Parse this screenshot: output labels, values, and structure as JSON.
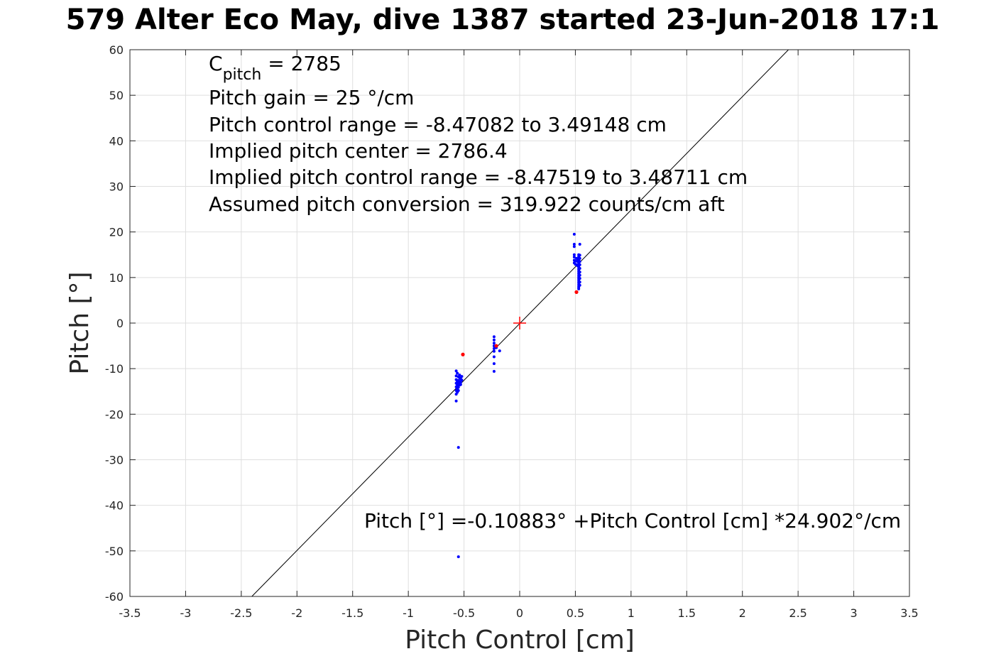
{
  "chart_data": {
    "type": "scatter",
    "title": "579 Alter Eco May, dive 1387 started 23-Jun-2018 17:1",
    "xlabel": "Pitch Control [cm]",
    "ylabel": "Pitch [°]",
    "xlim": [
      -3.5,
      3.5
    ],
    "ylim": [
      -60,
      60
    ],
    "xticks": [
      "-3.5",
      "-3",
      "-2.5",
      "-2",
      "-1.5",
      "-1",
      "-0.5",
      "0",
      "0.5",
      "1",
      "1.5",
      "2",
      "2.5",
      "3",
      "3.5"
    ],
    "yticks": [
      "60",
      "50",
      "40",
      "30",
      "20",
      "10",
      "0",
      "-10",
      "-20",
      "-30",
      "-40",
      "-50",
      "-60"
    ],
    "grid": true,
    "annotations": {
      "c_pitch_symbol": "C",
      "c_pitch_subscript": "pitch",
      "c_pitch_value": " = 2785",
      "lines": [
        "Pitch gain = 25 °/cm",
        "Pitch control range = -8.47082 to 3.49148 cm",
        "Implied pitch center = 2786.4",
        "Implied pitch control range = -8.47519 to 3.48711 cm",
        "Assumed pitch conversion = 319.922 counts/cm aft"
      ],
      "fit_equation": "Pitch [°] =-0.10883° +Pitch Control [cm] *24.902°/cm"
    },
    "fit_line": {
      "intercept": -0.10883,
      "slope": 24.902,
      "color": "#000000"
    },
    "center_marker": {
      "x": 0,
      "y": 0,
      "color": "#ff0000"
    },
    "series": [
      {
        "color": "#0000ff",
        "points": [
          [
            0.49,
            19.5
          ],
          [
            0.49,
            17.3
          ],
          [
            0.49,
            16.8
          ],
          [
            0.49,
            15.0
          ],
          [
            0.49,
            14.5
          ],
          [
            0.49,
            13.8
          ],
          [
            0.49,
            13.2
          ],
          [
            0.5,
            12.9
          ],
          [
            0.5,
            13.6
          ],
          [
            0.51,
            14.2
          ],
          [
            0.51,
            12.8
          ],
          [
            0.52,
            13.5
          ],
          [
            0.52,
            14.0
          ],
          [
            0.52,
            12.6
          ],
          [
            0.53,
            15.0
          ],
          [
            0.53,
            14.6
          ],
          [
            0.53,
            14.1
          ],
          [
            0.53,
            13.7
          ],
          [
            0.53,
            13.3
          ],
          [
            0.53,
            12.9
          ],
          [
            0.53,
            12.5
          ],
          [
            0.53,
            12.1
          ],
          [
            0.53,
            11.7
          ],
          [
            0.53,
            11.3
          ],
          [
            0.53,
            10.9
          ],
          [
            0.53,
            10.5
          ],
          [
            0.53,
            10.1
          ],
          [
            0.53,
            9.7
          ],
          [
            0.53,
            9.3
          ],
          [
            0.53,
            8.9
          ],
          [
            0.53,
            8.5
          ],
          [
            0.53,
            8.1
          ],
          [
            0.53,
            7.8
          ],
          [
            0.53,
            7.5
          ],
          [
            0.54,
            17.3
          ],
          [
            0.54,
            14.9
          ],
          [
            0.54,
            14.2
          ],
          [
            0.54,
            13.5
          ],
          [
            0.54,
            12.8
          ],
          [
            0.54,
            12.0
          ],
          [
            0.54,
            11.2
          ],
          [
            0.54,
            10.5
          ],
          [
            0.54,
            9.8
          ],
          [
            0.54,
            9.0
          ],
          [
            0.54,
            8.3
          ],
          [
            -0.23,
            -3.0
          ],
          [
            -0.23,
            -3.7
          ],
          [
            -0.23,
            -4.4
          ],
          [
            -0.23,
            -5.0
          ],
          [
            -0.23,
            -5.6
          ],
          [
            -0.23,
            -6.2
          ],
          [
            -0.23,
            -7.4
          ],
          [
            -0.23,
            -8.9
          ],
          [
            -0.23,
            -10.6
          ],
          [
            -0.21,
            -5.4
          ],
          [
            -0.18,
            -6.1
          ],
          [
            -0.57,
            -10.5
          ],
          [
            -0.57,
            -11.6
          ],
          [
            -0.57,
            -12.4
          ],
          [
            -0.57,
            -13.2
          ],
          [
            -0.57,
            -14.0
          ],
          [
            -0.57,
            -14.8
          ],
          [
            -0.57,
            -15.6
          ],
          [
            -0.57,
            -17.1
          ],
          [
            -0.56,
            -11.0
          ],
          [
            -0.56,
            -12.8
          ],
          [
            -0.56,
            -13.6
          ],
          [
            -0.56,
            -14.4
          ],
          [
            -0.56,
            -15.2
          ],
          [
            -0.55,
            -11.8
          ],
          [
            -0.55,
            -12.6
          ],
          [
            -0.55,
            -13.3
          ],
          [
            -0.55,
            -14.1
          ],
          [
            -0.55,
            -14.8
          ],
          [
            -0.54,
            -11.4
          ],
          [
            -0.54,
            -12.0
          ],
          [
            -0.54,
            -12.8
          ],
          [
            -0.54,
            -13.6
          ],
          [
            -0.53,
            -12.2
          ],
          [
            -0.53,
            -13.0
          ],
          [
            -0.53,
            -13.5
          ],
          [
            -0.52,
            -12.5
          ],
          [
            -0.52,
            -11.7
          ],
          [
            -0.55,
            -27.3
          ],
          [
            -0.55,
            -51.3
          ]
        ]
      },
      {
        "color": "#ff0000",
        "points": [
          [
            0.51,
            6.8
          ],
          [
            -0.51,
            -6.9
          ],
          [
            -0.21,
            -5.0
          ]
        ]
      }
    ]
  }
}
